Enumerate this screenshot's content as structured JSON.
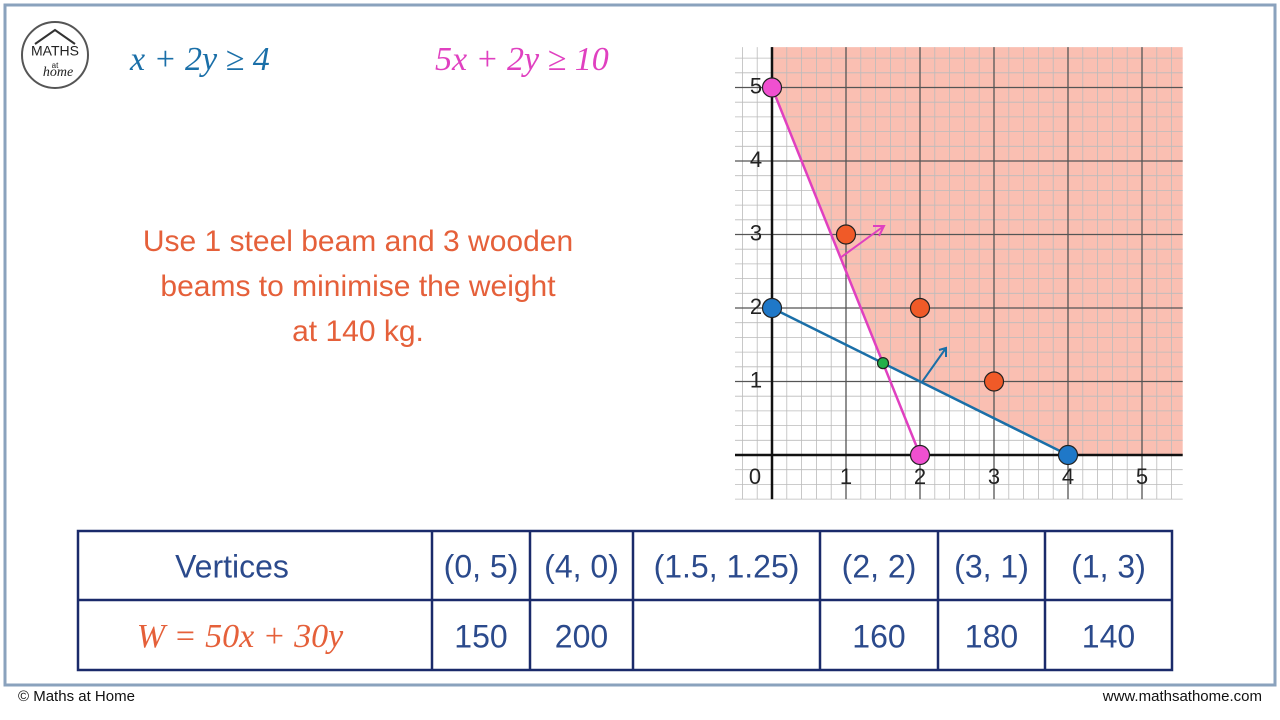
{
  "logo": {
    "lines": [
      "MATHS",
      "at",
      "home"
    ]
  },
  "equations": [
    {
      "text": "x + 2y ≥ 4",
      "color": "#1a6fa8"
    },
    {
      "text": "5x + 2y ≥ 10",
      "color": "#e040c0"
    }
  ],
  "message": [
    "Use 1 steel beam and 3 wooden",
    "beams to minimise the weight",
    "at 140 kg."
  ],
  "graph": {
    "xlim": [
      -0.5,
      5.55
    ],
    "ylim": [
      -0.6,
      5.55
    ],
    "xticks": [
      0,
      1,
      2,
      3,
      4,
      5
    ],
    "yticks": [
      1,
      2,
      3,
      4,
      5
    ],
    "region_color": "#f9b8aa",
    "lines": [
      {
        "x": [
          0,
          4
        ],
        "y": [
          2,
          0
        ],
        "color": "#1a6fa8"
      },
      {
        "x": [
          0,
          2
        ],
        "y": [
          5,
          0
        ],
        "color": "#e040c0"
      }
    ],
    "points": [
      {
        "x": 0,
        "y": 5,
        "color": "#f050d0"
      },
      {
        "x": 2,
        "y": 0,
        "color": "#f050d0"
      },
      {
        "x": 0,
        "y": 2,
        "color": "#1f78c8"
      },
      {
        "x": 4,
        "y": 0,
        "color": "#1f78c8"
      },
      {
        "x": 1.5,
        "y": 1.25,
        "color": "#22b04a"
      },
      {
        "x": 1,
        "y": 3,
        "color": "#f05a28"
      },
      {
        "x": 2,
        "y": 2,
        "color": "#f05a28"
      },
      {
        "x": 3,
        "y": 1,
        "color": "#f05a28"
      }
    ]
  },
  "table": {
    "header": [
      "Vertices",
      "(0, 5)",
      "(4, 0)",
      "(1.5, 1.25)",
      "(2, 2)",
      "(3, 1)",
      "(1, 3)"
    ],
    "row_label": "W =  50x + 30y",
    "values": [
      150,
      200,
      null,
      160,
      180,
      140
    ]
  },
  "footer": {
    "left": "© Maths at Home",
    "right": "www.mathsathome.com"
  }
}
